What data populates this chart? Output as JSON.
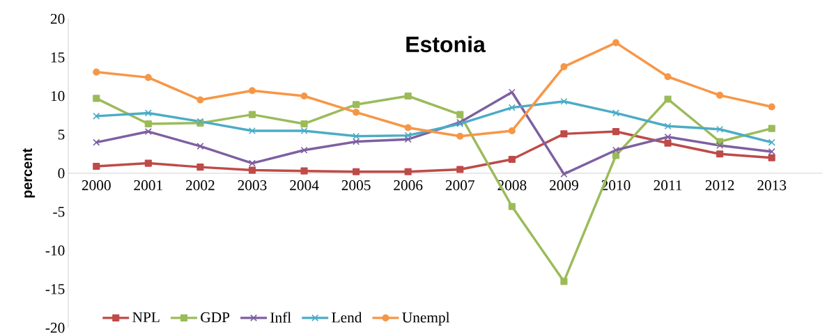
{
  "chart_data": {
    "type": "line",
    "title": "Estonia",
    "ylabel": "percent",
    "categories": [
      "2000",
      "2001",
      "2002",
      "2003",
      "2004",
      "2005",
      "2006",
      "2007",
      "2008",
      "2009",
      "2010",
      "2011",
      "2012",
      "2013"
    ],
    "ylim": [
      -20,
      20
    ],
    "yticks": [
      -20,
      -15,
      -10,
      -5,
      0,
      5,
      10,
      15,
      20
    ],
    "legend": "bottom left",
    "series": [
      {
        "name": "NPL",
        "color": "#be4b48",
        "marker": "square",
        "values": [
          0.9,
          1.3,
          0.8,
          0.4,
          0.3,
          0.2,
          0.2,
          0.5,
          1.8,
          5.1,
          5.4,
          3.9,
          2.5,
          2.0
        ]
      },
      {
        "name": "GDP",
        "color": "#9bbb59",
        "marker": "square",
        "values": [
          9.7,
          6.4,
          6.5,
          7.6,
          6.4,
          8.9,
          10.0,
          7.6,
          -4.3,
          -14.0,
          2.3,
          9.6,
          4.1,
          5.8
        ]
      },
      {
        "name": "Infl",
        "color": "#7e5fa1",
        "marker": "cross",
        "values": [
          4.0,
          5.4,
          3.5,
          1.3,
          3.0,
          4.1,
          4.4,
          6.6,
          10.5,
          -0.1,
          3.0,
          4.7,
          3.6,
          2.8
        ]
      },
      {
        "name": "Lend",
        "color": "#4bacc6",
        "marker": "cross",
        "values": [
          7.4,
          7.8,
          6.7,
          5.5,
          5.5,
          4.8,
          4.9,
          6.4,
          8.5,
          9.3,
          7.8,
          6.1,
          5.7,
          4.0
        ]
      },
      {
        "name": "Unempl",
        "color": "#f79646",
        "marker": "circle",
        "values": [
          13.1,
          12.4,
          9.5,
          10.7,
          10.0,
          7.9,
          5.9,
          4.8,
          5.5,
          13.8,
          16.9,
          12.5,
          10.1,
          8.6
        ]
      }
    ]
  }
}
